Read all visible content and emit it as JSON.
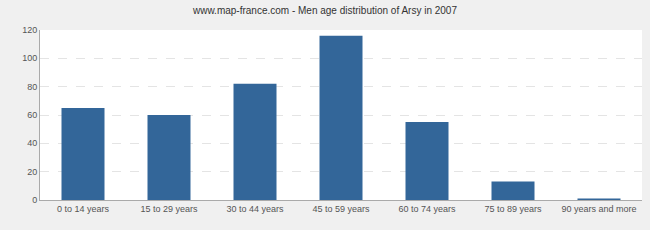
{
  "chart_data": {
    "type": "bar",
    "title": "www.map-france.com - Men age distribution of Arsy in 2007",
    "categories": [
      "0 to 14 years",
      "15 to 29 years",
      "30 to 44 years",
      "45 to 59 years",
      "60 to 74 years",
      "75 to 89 years",
      "90 years and more"
    ],
    "values": [
      65,
      60,
      82,
      116,
      55,
      13,
      1
    ],
    "color": "#336699",
    "ylim": [
      0,
      120
    ],
    "yticks": [
      0,
      20,
      40,
      60,
      80,
      100,
      120
    ],
    "grid": true
  }
}
